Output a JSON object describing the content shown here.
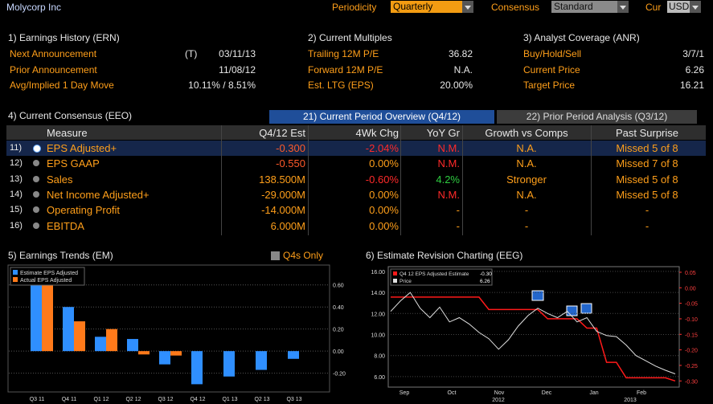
{
  "header": {
    "company": "Molycorp Inc",
    "periodicity_label": "Periodicity",
    "periodicity": "Quarterly",
    "consensus_label": "Consensus",
    "consensus": "Standard",
    "cur_label": "Cur",
    "cur": "USD"
  },
  "earnings_history": {
    "title": "1) Earnings History (ERN)",
    "rows": [
      {
        "label": "Next Announcement",
        "flag": "(T)",
        "value": "03/11/13"
      },
      {
        "label": "Prior Announcement",
        "value": "11/08/12"
      },
      {
        "label": "Avg/Implied 1 Day Move",
        "value": "10.11% / 8.51%"
      }
    ]
  },
  "multiples": {
    "title": "2) Current Multiples",
    "rows": [
      {
        "label": "Trailing 12M P/E",
        "value": "36.82"
      },
      {
        "label": "Forward 12M P/E",
        "value": "N.A."
      },
      {
        "label": "Est. LTG (EPS)",
        "value": "20.00%"
      }
    ]
  },
  "analyst": {
    "title": "3) Analyst Coverage (ANR)",
    "rows": [
      {
        "label": "Buy/Hold/Sell",
        "value": "3/7/1"
      },
      {
        "label": "Current Price",
        "value": "6.26"
      },
      {
        "label": "Target Price",
        "value": "16.21"
      }
    ]
  },
  "consensus": {
    "title": "4) Current Consensus (EEO)",
    "tabs": [
      "21) Current Period Overview (Q4/12)",
      "22) Prior Period Analysis (Q3/12)"
    ],
    "columns": [
      "Measure",
      "Q4/12 Est",
      "4Wk Chg",
      "YoY Gr",
      "Growth vs Comps",
      "Past Surprise"
    ],
    "rows": [
      [
        "11)",
        "EPS Adjusted+",
        "-0.300",
        "-2.04%",
        "N.M.",
        "N.A.",
        "Missed 5 of 8"
      ],
      [
        "12)",
        "EPS GAAP",
        "-0.550",
        "0.00%",
        "N.M.",
        "N.A.",
        "Missed 7 of 8"
      ],
      [
        "13)",
        "Sales",
        "138.500M",
        "-0.60%",
        "4.2%",
        "Stronger",
        "Missed 5 of 8"
      ],
      [
        "14)",
        "Net Income Adjusted+",
        "-29.000M",
        "0.00%",
        "N.M.",
        "N.A.",
        "Missed 5 of 8"
      ],
      [
        "15)",
        "Operating Profit",
        "-14.000M",
        "0.00%",
        "-",
        "-",
        "-"
      ],
      [
        "16)",
        "EBITDA",
        "6.000M",
        "0.00%",
        "-",
        "-",
        "-"
      ]
    ]
  },
  "earnings_trends": {
    "title": "5) Earnings Trends (EM)",
    "checkbox_label": "Q4s Only",
    "chart": {
      "type": "bar",
      "categories": [
        "Q3 11",
        "Q4 11",
        "Q1 12",
        "Q2 12",
        "Q3 12",
        "Q4 12",
        "Q1 13",
        "Q2 13",
        "Q3 13"
      ],
      "series": [
        {
          "name": "Estimate EPS Adjusted",
          "color": "#2f8fff",
          "values": [
            0.72,
            0.4,
            0.13,
            0.11,
            -0.12,
            -0.3,
            -0.23,
            -0.17,
            -0.07
          ]
        },
        {
          "name": "Actual EPS Adjusted",
          "color": "#ff7a1a",
          "values": [
            0.72,
            0.27,
            0.2,
            -0.03,
            -0.04,
            null,
            null,
            null,
            null
          ]
        }
      ],
      "ylim": [
        -0.37,
        0.78
      ],
      "yticks": [
        {
          "value": 0.6,
          "label": "0.60"
        },
        {
          "value": 0.4,
          "label": "0.40"
        },
        {
          "value": 0.2,
          "label": "0.20"
        },
        {
          "value": 0,
          "label": "0.00"
        },
        {
          "value": -0.2,
          "label": "-0.20"
        }
      ],
      "grid": true
    }
  },
  "revision": {
    "title": "6) Estimate Revision Charting (EEG)",
    "chart": {
      "type": "line",
      "x_labels": [
        "Sep",
        "Oct",
        "Nov",
        "Dec",
        "Jan",
        "Feb"
      ],
      "years": [
        "2012",
        "2013"
      ],
      "series": [
        {
          "name": "Q4 12 EPS Adjusted Estimate",
          "current": "-0.30",
          "color": "#ff1a1a",
          "axis": "y2",
          "values": [
            -0.03,
            -0.03,
            -0.03,
            -0.03,
            -0.03,
            -0.03,
            -0.03,
            -0.03,
            -0.03,
            -0.03,
            -0.07,
            -0.07,
            -0.07,
            -0.07,
            -0.07,
            -0.07,
            -0.1,
            -0.1,
            -0.1,
            -0.1,
            -0.13,
            -0.13,
            -0.24,
            -0.24,
            -0.29,
            -0.29,
            -0.29,
            -0.29,
            -0.29,
            -0.3
          ]
        },
        {
          "name": "Price",
          "current": "6.26",
          "color": "#e0e0e0",
          "values": [
            12.2,
            13.2,
            14.0,
            12.5,
            11.6,
            12.6,
            11.2,
            11.6,
            11.0,
            10.2,
            9.6,
            8.6,
            9.5,
            10.8,
            11.8,
            12.5,
            12.0,
            11.6,
            12.2,
            11.2,
            11.6,
            10.3,
            9.9,
            9.8,
            9.0,
            8.0,
            7.5,
            7.0,
            6.6,
            6.26
          ]
        }
      ],
      "ylim": [
        5.0,
        16.45
      ],
      "yticks": [
        {
          "value": 16,
          "label": "16.00"
        },
        {
          "value": 14,
          "label": "14.00"
        },
        {
          "value": 12,
          "label": "12.00"
        },
        {
          "value": 10,
          "label": "10.00"
        },
        {
          "value": 8,
          "label": "8.00"
        },
        {
          "value": 6,
          "label": "6.00"
        }
      ],
      "y2lim": [
        -0.32,
        0.068
      ],
      "y2ticks": [
        {
          "value": 0.05,
          "label": "0.05"
        },
        {
          "value": 0,
          "label": "0.00"
        },
        {
          "value": -0.05,
          "label": "-0.05"
        },
        {
          "value": -0.1,
          "label": "-0.10"
        },
        {
          "value": -0.15,
          "label": "-0.15"
        },
        {
          "value": -0.2,
          "label": "-0.20"
        },
        {
          "value": -0.25,
          "label": "-0.25"
        },
        {
          "value": -0.3,
          "label": "-0.30"
        }
      ],
      "grid": true
    }
  }
}
